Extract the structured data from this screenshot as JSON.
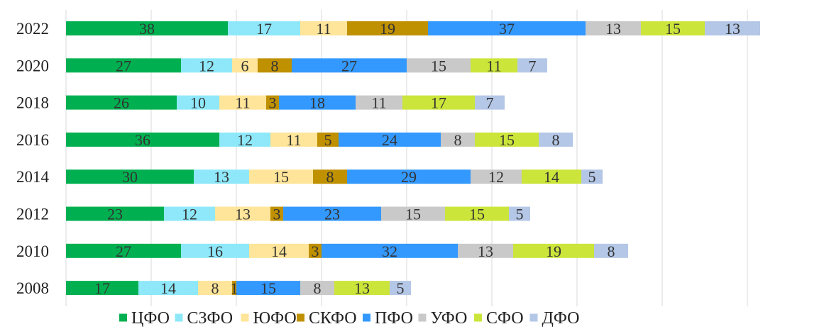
{
  "chart_data": {
    "type": "bar",
    "orientation": "horizontal",
    "stacked": true,
    "title": "",
    "xlabel": "",
    "ylabel": "",
    "xlim": [
      0,
      162
    ],
    "grid": true,
    "legend_position": "bottom",
    "categories": [
      "2022",
      "2020",
      "2018",
      "2016",
      "2014",
      "2012",
      "2010",
      "2008"
    ],
    "series": [
      {
        "name": "ЦФО",
        "color": "#00b050",
        "values": [
          38,
          27,
          26,
          36,
          30,
          23,
          27,
          17
        ]
      },
      {
        "name": "СЗФО",
        "color": "#8ee8fa",
        "values": [
          17,
          12,
          10,
          12,
          13,
          12,
          16,
          14
        ]
      },
      {
        "name": "ЮФО",
        "color": "#ffe599",
        "values": [
          11,
          6,
          11,
          11,
          15,
          13,
          14,
          8
        ]
      },
      {
        "name": "СКФО",
        "color": "#bf9000",
        "values": [
          19,
          8,
          3,
          5,
          8,
          3,
          3,
          1
        ]
      },
      {
        "name": "ПФО",
        "color": "#3399ff",
        "values": [
          37,
          27,
          18,
          24,
          29,
          23,
          32,
          15
        ]
      },
      {
        "name": "УФО",
        "color": "#c9c9c9",
        "values": [
          13,
          15,
          11,
          8,
          12,
          15,
          13,
          8
        ]
      },
      {
        "name": "СФО",
        "color": "#cce53a",
        "values": [
          15,
          11,
          17,
          15,
          14,
          15,
          19,
          13
        ]
      },
      {
        "name": "ДФО",
        "color": "#b4c7e7",
        "values": [
          13,
          7,
          7,
          8,
          5,
          5,
          8,
          5
        ]
      }
    ]
  }
}
